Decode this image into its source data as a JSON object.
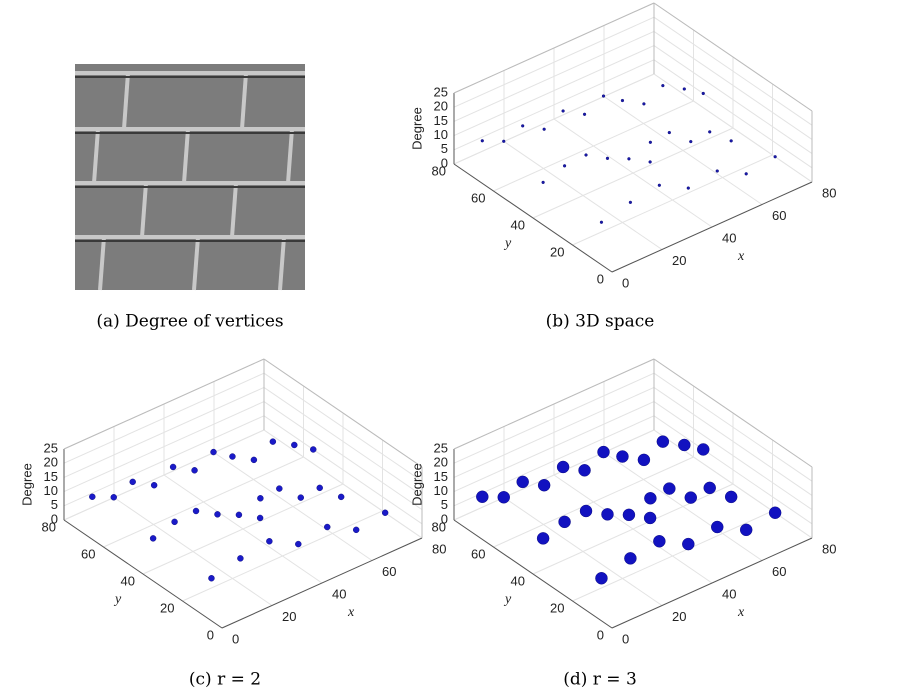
{
  "panels": [
    {
      "caption": "(a) Degree of vertices"
    }
  ],
  "chart_data": [
    {
      "type": "scatter3d",
      "caption": "(b) 3D space",
      "xlabel": "x",
      "ylabel": "y",
      "zlabel": "Degree",
      "color": "#1a1aa8",
      "marker_size": 1.4,
      "xlim": [
        0,
        80
      ],
      "ylim": [
        0,
        80
      ],
      "zlim": [
        0,
        25
      ],
      "xticks": [
        0,
        20,
        40,
        60,
        80
      ],
      "yticks": [
        0,
        20,
        40,
        60,
        80
      ],
      "zticks": [
        0,
        5,
        10,
        15,
        20,
        25
      ],
      "x": [
        5,
        12,
        18,
        25,
        31,
        38,
        44,
        50,
        57,
        63,
        70,
        76,
        8,
        15,
        22,
        29,
        36,
        43,
        49,
        56,
        62,
        69,
        10,
        20,
        30,
        40,
        50,
        60,
        70,
        35
      ],
      "y": [
        72,
        70,
        68,
        66,
        64,
        62,
        60,
        58,
        56,
        54,
        52,
        50,
        45,
        43,
        41,
        39,
        37,
        35,
        33,
        31,
        29,
        27,
        18,
        16,
        14,
        12,
        10,
        8,
        6,
        25
      ],
      "z": [
        10,
        8,
        12,
        9,
        14,
        11,
        16,
        13,
        10,
        15,
        12,
        9,
        7,
        11,
        13,
        10,
        8,
        12,
        14,
        9,
        11,
        6,
        5,
        9,
        12,
        8,
        11,
        7,
        10,
        13
      ]
    },
    {
      "type": "scatter3d",
      "caption": "(c) r = 2",
      "xlabel": "x",
      "ylabel": "y",
      "zlabel": "Degree",
      "color": "#1a1ac8",
      "marker_size": 3,
      "xlim": [
        0,
        80
      ],
      "ylim": [
        0,
        80
      ],
      "zlim": [
        0,
        25
      ],
      "xticks": [
        0,
        20,
        40,
        60,
        80
      ],
      "yticks": [
        0,
        20,
        40,
        60,
        80
      ],
      "zticks": [
        0,
        5,
        10,
        15,
        20,
        25
      ],
      "x": [
        5,
        12,
        18,
        25,
        31,
        38,
        44,
        50,
        57,
        63,
        70,
        76,
        8,
        15,
        22,
        29,
        36,
        43,
        49,
        56,
        62,
        69,
        10,
        20,
        30,
        40,
        50,
        60,
        70,
        35
      ],
      "y": [
        72,
        70,
        68,
        66,
        64,
        62,
        60,
        58,
        56,
        54,
        52,
        50,
        45,
        43,
        41,
        39,
        37,
        35,
        33,
        31,
        29,
        27,
        18,
        16,
        14,
        12,
        10,
        8,
        6,
        25
      ],
      "z": [
        10,
        8,
        12,
        9,
        14,
        11,
        16,
        13,
        10,
        15,
        12,
        9,
        7,
        11,
        13,
        10,
        8,
        12,
        14,
        9,
        11,
        6,
        5,
        9,
        12,
        8,
        11,
        7,
        10,
        13
      ]
    },
    {
      "type": "scatter3d",
      "caption": "(d) r = 3",
      "xlabel": "x",
      "ylabel": "y",
      "zlabel": "Degree",
      "color": "#1212c0",
      "marker_size": 6,
      "xlim": [
        0,
        80
      ],
      "ylim": [
        0,
        80
      ],
      "zlim": [
        0,
        25
      ],
      "xticks": [
        0,
        20,
        40,
        60,
        80
      ],
      "yticks": [
        0,
        20,
        40,
        60,
        80
      ],
      "zticks": [
        0,
        5,
        10,
        15,
        20,
        25
      ],
      "x": [
        5,
        12,
        18,
        25,
        31,
        38,
        44,
        50,
        57,
        63,
        70,
        76,
        8,
        15,
        22,
        29,
        36,
        43,
        49,
        56,
        62,
        69,
        10,
        20,
        30,
        40,
        50,
        60,
        70,
        35
      ],
      "y": [
        72,
        70,
        68,
        66,
        64,
        62,
        60,
        58,
        56,
        54,
        52,
        50,
        45,
        43,
        41,
        39,
        37,
        35,
        33,
        31,
        29,
        27,
        18,
        16,
        14,
        12,
        10,
        8,
        6,
        25
      ],
      "z": [
        10,
        8,
        12,
        9,
        14,
        11,
        16,
        13,
        10,
        15,
        12,
        9,
        7,
        11,
        13,
        10,
        8,
        12,
        14,
        9,
        11,
        6,
        5,
        9,
        12,
        8,
        11,
        7,
        10,
        13
      ]
    }
  ]
}
